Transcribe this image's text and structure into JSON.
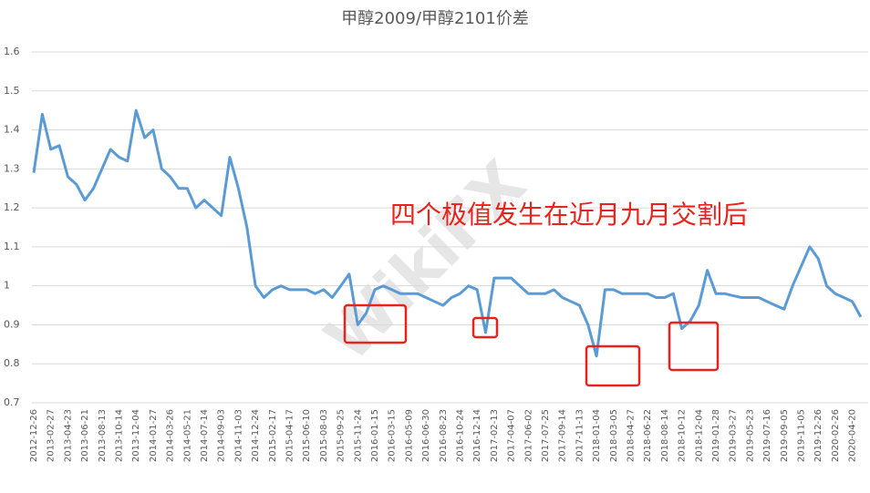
{
  "chart_data": {
    "type": "line",
    "title": "甲醇2009/甲醇2101价差",
    "annotation": "四个极值发生在近月九月交割后",
    "watermark": "WikiFX",
    "categories": [
      "2012-12-26",
      null,
      "2013-02-27",
      null,
      "2013-04-23",
      null,
      "2013-06-21",
      null,
      "2013-08-13",
      null,
      "2013-10-14",
      null,
      "2013-12-04",
      null,
      "2014-01-27",
      null,
      "2014-03-26",
      null,
      "2014-05-21",
      null,
      "2014-07-14",
      null,
      "2014-09-03",
      null,
      "2014-11-03",
      null,
      "2014-12-24",
      null,
      "2015-02-17",
      null,
      "2015-04-17",
      null,
      "2015-06-10",
      null,
      "2015-08-03",
      null,
      "2015-09-25",
      null,
      "2015-11-24",
      null,
      "2016-01-15",
      null,
      "2016-03-15",
      null,
      "2016-05-09",
      null,
      "2016-06-30",
      null,
      "2016-08-23",
      null,
      "2016-10-24",
      null,
      "2016-12-14",
      null,
      "2017-02-13",
      null,
      "2017-04-07",
      null,
      "2017-06-02",
      null,
      "2017-07-25",
      null,
      "2017-09-14",
      null,
      "2017-11-13",
      null,
      "2018-01-04",
      null,
      "2018-03-05",
      null,
      "2018-04-27",
      null,
      "2018-06-22",
      null,
      "2018-08-14",
      null,
      "2018-10-12",
      null,
      "2018-12-04",
      null,
      "2019-01-28",
      null,
      "2019-03-27",
      null,
      "2019-05-23",
      null,
      "2019-07-16",
      null,
      "2019-09-05",
      null,
      "2019-11-05",
      null,
      "2019-12-26",
      null,
      "2020-02-26",
      null,
      "2020-04-20",
      null
    ],
    "values": [
      1.29,
      1.44,
      1.35,
      1.36,
      1.28,
      1.26,
      1.22,
      1.25,
      1.3,
      1.35,
      1.33,
      1.32,
      1.45,
      1.38,
      1.4,
      1.3,
      1.28,
      1.25,
      1.25,
      1.2,
      1.22,
      1.2,
      1.18,
      1.33,
      1.25,
      1.15,
      1.0,
      0.97,
      0.99,
      1.0,
      0.99,
      0.99,
      0.99,
      0.98,
      0.99,
      0.97,
      1.0,
      1.03,
      0.9,
      0.93,
      0.99,
      1.0,
      0.99,
      0.98,
      0.98,
      0.98,
      0.97,
      0.96,
      0.95,
      0.97,
      0.98,
      1.0,
      0.99,
      0.88,
      1.02,
      1.02,
      1.02,
      1.0,
      0.98,
      0.98,
      0.98,
      0.99,
      0.97,
      0.96,
      0.95,
      0.9,
      0.82,
      0.99,
      0.99,
      0.98,
      0.98,
      0.98,
      0.98,
      0.97,
      0.97,
      0.98,
      0.89,
      0.91,
      0.95,
      1.04,
      0.98,
      0.98,
      0.975,
      0.97,
      0.97,
      0.97,
      0.96,
      0.95,
      0.94,
      1.0,
      1.05,
      1.1,
      1.07,
      1.0,
      0.98,
      0.97,
      0.96,
      0.92
    ],
    "color": "#5b9bd5",
    "ylim": [
      0.7,
      1.6
    ],
    "yticks": [
      0.7,
      0.8,
      0.9,
      1,
      1.1,
      1.2,
      1.3,
      1.4,
      1.5,
      1.6
    ],
    "grid": true,
    "highlight_color": "#e8231c"
  }
}
